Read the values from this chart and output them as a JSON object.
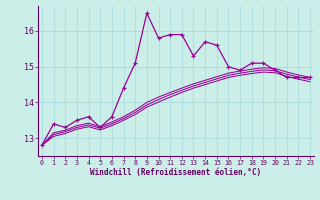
{
  "xlabel": "Windchill (Refroidissement éolien,°C)",
  "background_color": "#cceee8",
  "grid_color": "#aadddd",
  "line_color": "#990099",
  "x_ticks": [
    0,
    1,
    2,
    3,
    4,
    5,
    6,
    7,
    8,
    9,
    10,
    11,
    12,
    13,
    14,
    15,
    16,
    17,
    18,
    19,
    20,
    21,
    22,
    23
  ],
  "y_ticks": [
    13,
    14,
    15,
    16
  ],
  "ylim": [
    12.5,
    16.7
  ],
  "xlim": [
    -0.3,
    23.3
  ],
  "series1": [
    12.8,
    13.4,
    13.3,
    13.5,
    13.6,
    13.3,
    13.6,
    14.4,
    15.1,
    16.5,
    15.8,
    15.9,
    15.9,
    15.3,
    15.7,
    15.6,
    15.0,
    14.9,
    15.1,
    15.1,
    14.9,
    14.7,
    14.7,
    14.7
  ],
  "series2": [
    12.8,
    13.15,
    13.22,
    13.35,
    13.42,
    13.32,
    13.45,
    13.6,
    13.78,
    14.0,
    14.15,
    14.28,
    14.4,
    14.52,
    14.62,
    14.72,
    14.82,
    14.88,
    14.93,
    14.97,
    14.95,
    14.85,
    14.77,
    14.7
  ],
  "series3": [
    12.8,
    13.1,
    13.18,
    13.3,
    13.37,
    13.28,
    13.4,
    13.55,
    13.72,
    13.93,
    14.08,
    14.22,
    14.34,
    14.46,
    14.56,
    14.66,
    14.76,
    14.82,
    14.87,
    14.91,
    14.89,
    14.79,
    14.71,
    14.64
  ],
  "series4": [
    12.8,
    13.05,
    13.13,
    13.25,
    13.32,
    13.23,
    13.35,
    13.5,
    13.66,
    13.87,
    14.01,
    14.15,
    14.28,
    14.4,
    14.5,
    14.6,
    14.7,
    14.76,
    14.81,
    14.85,
    14.83,
    14.73,
    14.65,
    14.58
  ]
}
